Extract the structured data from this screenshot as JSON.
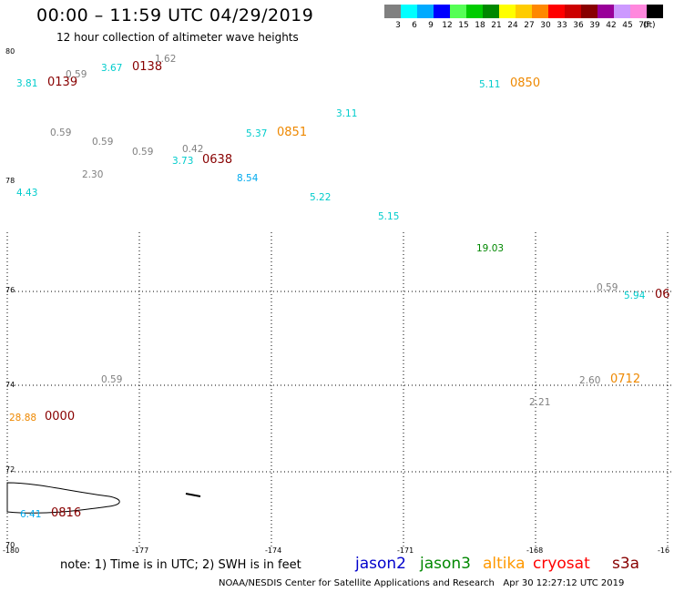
{
  "header": {
    "title": "00:00 – 11:59 UTC 04/29/2019",
    "subtitle": "12 hour collection of altimeter wave heights"
  },
  "legend": {
    "unit": "(ft)",
    "bins": [
      {
        "label": "3",
        "color": "#808080"
      },
      {
        "label": "6",
        "color": "#00ffff"
      },
      {
        "label": "9",
        "color": "#00aaff"
      },
      {
        "label": "12",
        "color": "#0000ff"
      },
      {
        "label": "15",
        "color": "#55ff55"
      },
      {
        "label": "18",
        "color": "#00cc00"
      },
      {
        "label": "21",
        "color": "#008800"
      },
      {
        "label": "24",
        "color": "#ffff00"
      },
      {
        "label": "27",
        "color": "#ffcc00"
      },
      {
        "label": "30",
        "color": "#ff8800"
      },
      {
        "label": "33",
        "color": "#ff0000"
      },
      {
        "label": "36",
        "color": "#cc0000"
      },
      {
        "label": "39",
        "color": "#880000"
      },
      {
        "label": "42",
        "color": "#990099"
      },
      {
        "label": "45",
        "color": "#cc99ff"
      },
      {
        "label": "70",
        "color": "#ff88dd"
      },
      {
        "label": "",
        "color": "#000000"
      }
    ]
  },
  "axes": {
    "lat_labels": [
      "80",
      "78",
      "76",
      "74",
      "72",
      "70"
    ],
    "lon_labels": [
      "-180",
      "-177",
      "-174",
      "-171",
      "-168",
      "-16"
    ]
  },
  "observations": [
    {
      "text": "3.81",
      "color": "#00cccc"
    },
    {
      "text": "0139",
      "color": "#880000",
      "time": true
    },
    {
      "text": "0.59",
      "color": "#808080"
    },
    {
      "text": "3.67",
      "color": "#00cccc"
    },
    {
      "text": "0138",
      "color": "#880000",
      "time": true
    },
    {
      "text": "1.62",
      "color": "#808080"
    },
    {
      "text": "5.11",
      "color": "#00cccc"
    },
    {
      "text": "0850",
      "color": "#ee8800",
      "time": true
    },
    {
      "text": "3.11",
      "color": "#00cccc"
    },
    {
      "text": "0.59",
      "color": "#808080"
    },
    {
      "text": "0.59",
      "color": "#808080"
    },
    {
      "text": "5.37",
      "color": "#00cccc"
    },
    {
      "text": "0851",
      "color": "#ee8800",
      "time": true
    },
    {
      "text": "0.59",
      "color": "#808080"
    },
    {
      "text": "0.42",
      "color": "#808080"
    },
    {
      "text": "3.73",
      "color": "#00cccc"
    },
    {
      "text": "0638",
      "color": "#880000",
      "time": true
    },
    {
      "text": "2.30",
      "color": "#808080"
    },
    {
      "text": "8.54",
      "color": "#00aaee"
    },
    {
      "text": "4.43",
      "color": "#00cccc"
    },
    {
      "text": "5.22",
      "color": "#00cccc"
    },
    {
      "text": "5.15",
      "color": "#00cccc"
    },
    {
      "text": "19.03",
      "color": "#008800"
    },
    {
      "text": "0.59",
      "color": "#808080"
    },
    {
      "text": "5.94",
      "color": "#00cccc"
    },
    {
      "text": "06",
      "color": "#880000",
      "time": true
    },
    {
      "text": "0.59",
      "color": "#808080"
    },
    {
      "text": "2.60",
      "color": "#808080"
    },
    {
      "text": "0712",
      "color": "#ee8800",
      "time": true
    },
    {
      "text": "2.21",
      "color": "#808080"
    },
    {
      "text": "28.88",
      "color": "#ee8800"
    },
    {
      "text": "0000",
      "color": "#880000",
      "time": true
    },
    {
      "text": "6.41",
      "color": "#00aaee"
    },
    {
      "text": "0816",
      "color": "#880000",
      "time": true
    }
  ],
  "footer": {
    "note": "note: 1) Time is in UTC; 2) SWH is in feet",
    "satellites": [
      {
        "name": "jason2",
        "color": "#0000cc"
      },
      {
        "name": "jason3",
        "color": "#008800"
      },
      {
        "name": "altika",
        "color": "#ff9900"
      },
      {
        "name": "cryosat",
        "color": "#ff0000"
      },
      {
        "name": "s3a",
        "color": "#880000"
      }
    ],
    "credit": "NOAA/NESDIS Center for Satellite Applications and Research",
    "timestamp": "Apr 30 12:27:12 UTC 2019"
  }
}
